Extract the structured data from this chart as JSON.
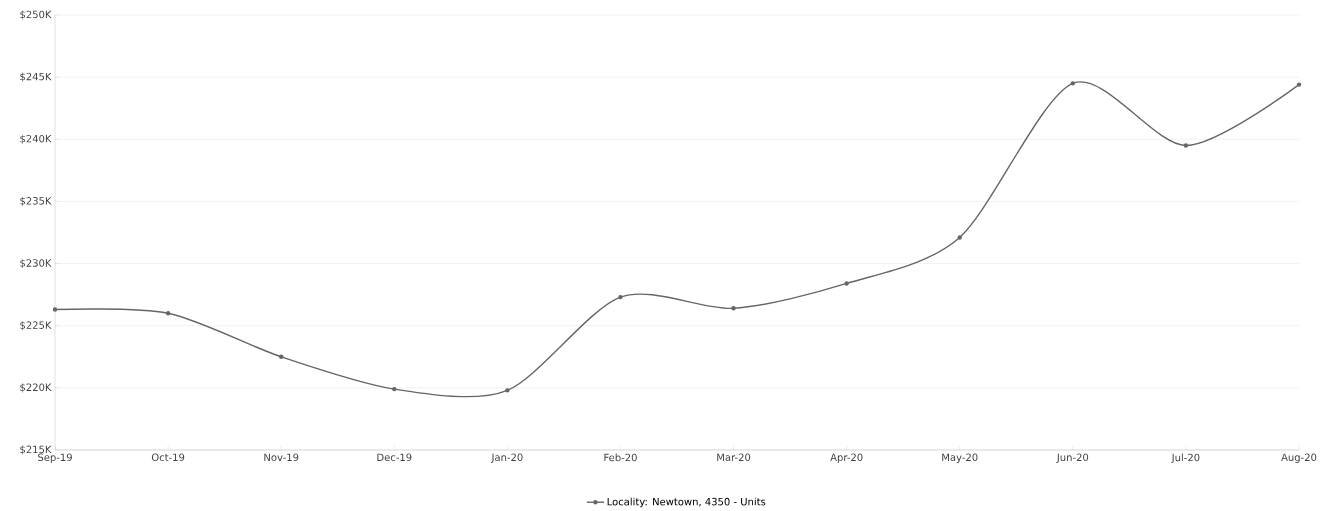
{
  "chart_data": {
    "type": "line",
    "categories": [
      "Sep-19",
      "Oct-19",
      "Nov-19",
      "Dec-19",
      "Jan-20",
      "Feb-20",
      "Mar-20",
      "Apr-20",
      "May-20",
      "Jun-20",
      "Jul-20",
      "Aug-20"
    ],
    "series": [
      {
        "name": "Locality: Newtown, 4350 - Units",
        "color": "#666666",
        "values": [
          226.3,
          226.0,
          222.5,
          219.9,
          219.8,
          227.3,
          226.4,
          228.4,
          232.1,
          244.5,
          239.5,
          244.4
        ]
      }
    ],
    "ylim": [
      215,
      250
    ],
    "yticks": [
      {
        "value": 215,
        "label": "$215K"
      },
      {
        "value": 220,
        "label": "$220K"
      },
      {
        "value": 225,
        "label": "$225K"
      },
      {
        "value": 230,
        "label": "$230K"
      },
      {
        "value": 235,
        "label": "$235K"
      },
      {
        "value": 240,
        "label": "$240K"
      },
      {
        "value": 245,
        "label": "$245K"
      },
      {
        "value": 250,
        "label": "$250K"
      }
    ],
    "grid": "y",
    "legend": "bottom",
    "marker": "circle",
    "line_style": "solid"
  }
}
